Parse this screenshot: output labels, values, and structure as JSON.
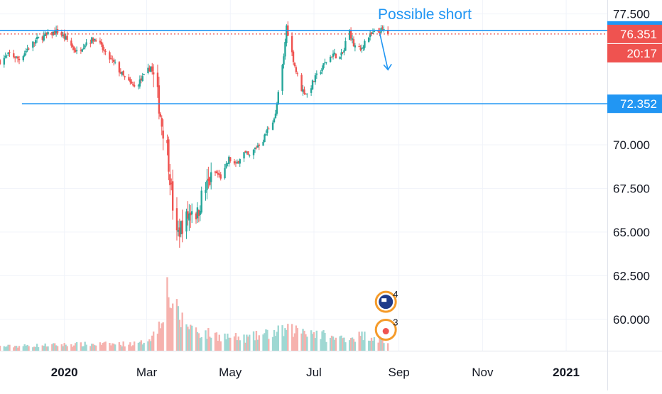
{
  "chart_data": {
    "type": "candlestick",
    "title": "",
    "x_axis": {
      "labels": [
        "2020",
        "Mar",
        "May",
        "Jul",
        "Sep",
        "Nov",
        "2021"
      ],
      "bold_labels": [
        "2020",
        "2021"
      ],
      "range": [
        "2019-11-15",
        "2021-01-31"
      ]
    },
    "y_axis": {
      "ticks": [
        "77.500",
        "70.000",
        "67.500",
        "65.000",
        "62.500",
        "60.000"
      ],
      "range": [
        58.2,
        78.3
      ],
      "position": "right"
    },
    "grid": true,
    "price_tags": [
      {
        "label": "76.558",
        "value": 76.558,
        "color": "#2196f3",
        "kind": "horizontal-line"
      },
      {
        "label": "76.351",
        "value": 76.351,
        "color": "#ef5350",
        "kind": "last-price"
      },
      {
        "label": "20:17",
        "value": 75.25,
        "color": "#ef5350",
        "kind": "countdown"
      },
      {
        "label": "72.352",
        "value": 72.352,
        "color": "#2196f3",
        "kind": "horizontal-line"
      }
    ],
    "horizontal_lines": [
      {
        "value": 76.558,
        "color": "#2196f3",
        "style": "solid",
        "start": "2019-11-15"
      },
      {
        "value": 72.352,
        "color": "#2196f3",
        "style": "solid",
        "start": "2019-12-01"
      },
      {
        "value": 76.351,
        "color": "#ef5350",
        "style": "dotted",
        "start": "2019-11-15"
      }
    ],
    "annotation": {
      "text": "Possible short",
      "color": "#2196f3",
      "arrow": {
        "from_date": "2020-08-18",
        "from_value": 76.4,
        "to_date": "2020-08-24",
        "to_value": 74.3
      }
    },
    "price_anchors": [
      [
        "2019-11-15",
        74.8
      ],
      [
        "2019-11-22",
        75.2
      ],
      [
        "2019-11-29",
        74.9
      ],
      [
        "2019-12-06",
        75.6
      ],
      [
        "2019-12-13",
        76.1
      ],
      [
        "2019-12-20",
        76.3
      ],
      [
        "2019-12-27",
        76.5
      ],
      [
        "2020-01-03",
        76.0
      ],
      [
        "2020-01-10",
        75.3
      ],
      [
        "2020-01-17",
        75.9
      ],
      [
        "2020-01-24",
        76.1
      ],
      [
        "2020-01-31",
        75.2
      ],
      [
        "2020-02-07",
        74.6
      ],
      [
        "2020-02-14",
        73.8
      ],
      [
        "2020-02-21",
        73.3
      ],
      [
        "2020-02-28",
        73.9
      ],
      [
        "2020-03-04",
        74.5
      ],
      [
        "2020-03-09",
        72.8
      ],
      [
        "2020-03-12",
        71.2
      ],
      [
        "2020-03-16",
        69.8
      ],
      [
        "2020-03-18",
        68.2
      ],
      [
        "2020-03-20",
        66.5
      ],
      [
        "2020-03-23",
        64.7
      ],
      [
        "2020-03-26",
        65.3
      ],
      [
        "2020-03-31",
        65.9
      ],
      [
        "2020-04-03",
        66.4
      ],
      [
        "2020-04-07",
        66.0
      ],
      [
        "2020-04-10",
        67.0
      ],
      [
        "2020-04-15",
        67.8
      ],
      [
        "2020-04-20",
        68.4
      ],
      [
        "2020-04-25",
        68.1
      ],
      [
        "2020-04-30",
        69.2
      ],
      [
        "2020-05-05",
        68.8
      ],
      [
        "2020-05-10",
        69.6
      ],
      [
        "2020-05-15",
        69.3
      ],
      [
        "2020-05-20",
        69.9
      ],
      [
        "2020-05-25",
        70.3
      ],
      [
        "2020-05-29",
        71.0
      ],
      [
        "2020-06-03",
        71.7
      ],
      [
        "2020-06-06",
        73.5
      ],
      [
        "2020-06-09",
        75.0
      ],
      [
        "2020-06-11",
        76.8
      ],
      [
        "2020-06-14",
        75.6
      ],
      [
        "2020-06-18",
        74.2
      ],
      [
        "2020-06-22",
        73.2
      ],
      [
        "2020-06-26",
        72.9
      ],
      [
        "2020-07-01",
        73.7
      ],
      [
        "2020-07-06",
        74.3
      ],
      [
        "2020-07-10",
        74.8
      ],
      [
        "2020-07-15",
        75.2
      ],
      [
        "2020-07-20",
        75.0
      ],
      [
        "2020-07-23",
        75.4
      ],
      [
        "2020-07-26",
        76.8
      ],
      [
        "2020-07-30",
        75.7
      ],
      [
        "2020-08-04",
        75.4
      ],
      [
        "2020-08-08",
        76.1
      ],
      [
        "2020-08-12",
        76.3
      ],
      [
        "2020-08-17",
        76.5
      ],
      [
        "2020-08-21",
        76.6
      ],
      [
        "2020-08-24",
        76.35
      ]
    ],
    "volume_anchors": [
      [
        "2019-11-15",
        0.06
      ],
      [
        "2020-01-10",
        0.09
      ],
      [
        "2020-02-25",
        0.1
      ],
      [
        "2020-03-08",
        0.25
      ],
      [
        "2020-03-16",
        0.85
      ],
      [
        "2020-03-25",
        0.45
      ],
      [
        "2020-04-10",
        0.25
      ],
      [
        "2020-05-10",
        0.17
      ],
      [
        "2020-06-10",
        0.28
      ],
      [
        "2020-06-25",
        0.3
      ],
      [
        "2020-07-15",
        0.17
      ],
      [
        "2020-08-10",
        0.22
      ],
      [
        "2020-08-24",
        0.12
      ]
    ],
    "indicator_badges": [
      {
        "label": "4",
        "date": "2020-08-24",
        "value": 61.0,
        "color": "#f59b2a",
        "icon": "flag-icon"
      },
      {
        "label": "3",
        "date": "2020-08-24",
        "value": 59.4,
        "color": "#f59b2a",
        "icon": "record-icon"
      }
    ],
    "series_colors": {
      "up": "#26a69a",
      "down": "#ef5350",
      "volume_up": "#9fd8d3",
      "volume_down": "#f6b2ae"
    }
  }
}
